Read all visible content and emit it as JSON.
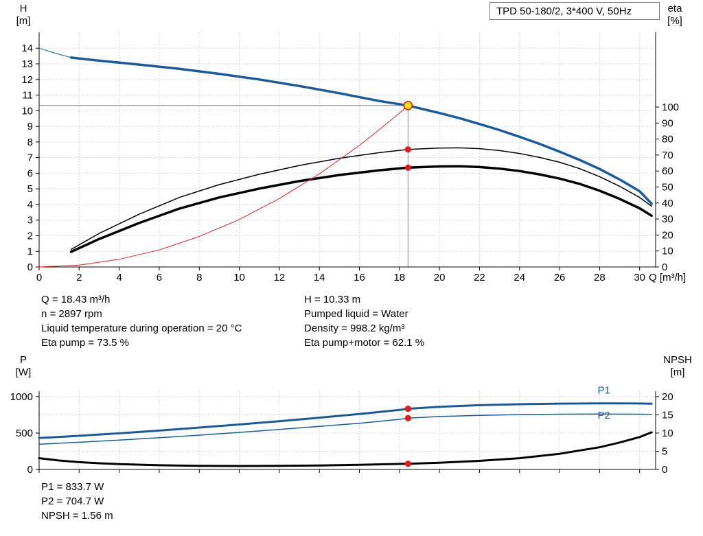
{
  "title_box": "TPD 50-180/2, 3*400 V, 50Hz",
  "labels": {
    "h": "H",
    "h_unit": "[m]",
    "eta": "eta",
    "eta_unit": "[%]",
    "q_unit": "Q [m³/h]",
    "p": "P",
    "p_unit": "[W]",
    "npsh": "NPSH",
    "npsh_unit": "[m]"
  },
  "duty_info": {
    "left": [
      "Q = 18.43 m³/h",
      "n = 2897 rpm",
      "Liquid temperature during operation = 20 °C",
      "Eta pump = 73.5 %"
    ],
    "right": [
      "H = 10.33 m",
      "Pumped liquid = Water",
      "Density = 998.2 kg/m³",
      "Eta pump+motor = 62.1 %"
    ]
  },
  "result_info": [
    "P1 = 833.7 W",
    "P2 = 704.7 W",
    "NPSH = 1.56 m"
  ],
  "colors": {
    "curve_blue": "#1a5a9c",
    "curve_black": "#000000",
    "system_red": "#e02020",
    "dot_red": "#e41b1b",
    "duty_marker_fill": "#ffe400",
    "duty_marker_stroke": "#e02020",
    "guide_gray": "#8a8a8a",
    "grid": "#c9c9c9",
    "axis": "#000000"
  },
  "chart_data": [
    {
      "name": "qh-eta-chart",
      "type": "line",
      "xlabel": "Q [m³/h]",
      "ylabel_left": "H [m]",
      "ylabel_right": "eta [%]",
      "xlim": [
        0,
        30.8
      ],
      "xticks": [
        0,
        2,
        4,
        6,
        8,
        10,
        12,
        14,
        16,
        18,
        20,
        22,
        24,
        26,
        28,
        30
      ],
      "show_x_labels": true,
      "left_ylim": [
        0,
        15.02
      ],
      "left_ticks": [
        0,
        1,
        2,
        3,
        4,
        5,
        6,
        7,
        8,
        9,
        10,
        11,
        12,
        13,
        14
      ],
      "right_ylim": [
        0,
        146.8
      ],
      "right_ticks": [
        0,
        10,
        20,
        30,
        40,
        50,
        60,
        70,
        80,
        90,
        100
      ],
      "grid_axis": "left",
      "duty_point": {
        "q": 18.43,
        "value": 10.33,
        "axis": "left"
      },
      "dots": [
        {
          "q": 18.43,
          "value": 73.5,
          "axis": "right"
        },
        {
          "q": 18.43,
          "value": 62.1,
          "axis": "right"
        }
      ],
      "series": [
        {
          "name": "h-curve-thin-start",
          "axis": "left",
          "color": "curve_blue",
          "width": 1,
          "points": [
            [
              0,
              14.0
            ],
            [
              0.8,
              13.68
            ],
            [
              1.6,
              13.4
            ]
          ]
        },
        {
          "name": "h-curve",
          "axis": "left",
          "color": "curve_blue",
          "width": 3.5,
          "points": [
            [
              1.6,
              13.4
            ],
            [
              3,
              13.2
            ],
            [
              5,
              12.95
            ],
            [
              7,
              12.68
            ],
            [
              9,
              12.36
            ],
            [
              11,
              12.0
            ],
            [
              13,
              11.58
            ],
            [
              15,
              11.12
            ],
            [
              17,
              10.62
            ],
            [
              18.43,
              10.33
            ],
            [
              20,
              9.85
            ],
            [
              21,
              9.52
            ],
            [
              22,
              9.15
            ],
            [
              23,
              8.76
            ],
            [
              24,
              8.33
            ],
            [
              25,
              7.88
            ],
            [
              26,
              7.38
            ],
            [
              27,
              6.85
            ],
            [
              28,
              6.27
            ],
            [
              29,
              5.6
            ],
            [
              30,
              4.85
            ],
            [
              30.6,
              4.05
            ]
          ]
        },
        {
          "name": "eta-pump-curve",
          "axis": "right",
          "color": "curve_black",
          "width": 1.5,
          "points": [
            [
              1.6,
              11
            ],
            [
              3,
              21
            ],
            [
              5,
              33
            ],
            [
              7,
              43.5
            ],
            [
              9,
              51.5
            ],
            [
              11,
              58
            ],
            [
              13,
              63.5
            ],
            [
              15,
              68
            ],
            [
              17,
              71.5
            ],
            [
              18.43,
              73.5
            ],
            [
              20,
              74.4
            ],
            [
              21,
              74.5
            ],
            [
              22,
              74
            ],
            [
              23,
              72.8
            ],
            [
              24,
              71
            ],
            [
              25,
              68.5
            ],
            [
              26,
              65.5
            ],
            [
              27,
              61.5
            ],
            [
              28,
              56.5
            ],
            [
              29,
              50.5
            ],
            [
              30,
              43.5
            ],
            [
              30.6,
              38
            ]
          ]
        },
        {
          "name": "eta-pump-motor-curve",
          "axis": "right",
          "color": "curve_black",
          "width": 3.5,
          "points": [
            [
              1.6,
              9.5
            ],
            [
              3,
              17.5
            ],
            [
              5,
              27.5
            ],
            [
              7,
              36.5
            ],
            [
              9,
              43.5
            ],
            [
              11,
              49
            ],
            [
              13,
              53.7
            ],
            [
              15,
              57.5
            ],
            [
              17,
              60.5
            ],
            [
              18.43,
              62.1
            ],
            [
              20,
              62.9
            ],
            [
              21,
              63
            ],
            [
              22,
              62.5
            ],
            [
              23,
              61.5
            ],
            [
              24,
              60
            ],
            [
              25,
              57.9
            ],
            [
              26,
              55.3
            ],
            [
              27,
              52
            ],
            [
              28,
              47.7
            ],
            [
              29,
              42.6
            ],
            [
              30,
              36.7
            ],
            [
              30.6,
              32
            ]
          ]
        },
        {
          "name": "system-curve",
          "axis": "left",
          "color": "system_red",
          "width": 1,
          "points": [
            [
              0,
              0
            ],
            [
              2,
              0.12
            ],
            [
              4,
              0.49
            ],
            [
              6,
              1.09
            ],
            [
              8,
              1.95
            ],
            [
              10,
              3.04
            ],
            [
              12,
              4.38
            ],
            [
              14,
              5.96
            ],
            [
              16,
              7.78
            ],
            [
              17,
              8.79
            ],
            [
              18,
              9.85
            ],
            [
              18.43,
              10.33
            ]
          ]
        }
      ]
    },
    {
      "name": "power-npsh-chart",
      "type": "line",
      "xlabel": "",
      "ylabel_left": "P [W]",
      "ylabel_right": "NPSH [m]",
      "xlim": [
        0,
        30.8
      ],
      "xticks": [
        0,
        2,
        4,
        6,
        8,
        10,
        12,
        14,
        16,
        18,
        20,
        22,
        24,
        26,
        28,
        30
      ],
      "show_x_labels": false,
      "left_ylim": [
        0,
        1075
      ],
      "left_ticks": [
        0,
        500,
        1000
      ],
      "right_ylim": [
        0,
        21.5
      ],
      "right_ticks": [
        0,
        5,
        10,
        15,
        20
      ],
      "grid_axis": "right",
      "dots": [
        {
          "q": 18.43,
          "value": 833.7,
          "axis": "left"
        },
        {
          "q": 18.43,
          "value": 704.7,
          "axis": "left"
        },
        {
          "q": 18.43,
          "value": 1.56,
          "axis": "right"
        }
      ],
      "series": [
        {
          "name": "p1-curve",
          "axis": "left",
          "color": "curve_blue",
          "width": 3,
          "label": {
            "text": "P1",
            "q": 27.9,
            "value": 1042
          },
          "points": [
            [
              0,
              432
            ],
            [
              2,
              462
            ],
            [
              4,
              496
            ],
            [
              6,
              534
            ],
            [
              8,
              575
            ],
            [
              10,
              618
            ],
            [
              12,
              663
            ],
            [
              14,
              711
            ],
            [
              16,
              762
            ],
            [
              18,
              818
            ],
            [
              18.43,
              833.7
            ],
            [
              20,
              861
            ],
            [
              22,
              883
            ],
            [
              24,
              896
            ],
            [
              26,
              904
            ],
            [
              28,
              908
            ],
            [
              30,
              906
            ],
            [
              30.6,
              903
            ]
          ]
        },
        {
          "name": "p2-curve",
          "axis": "left",
          "color": "curve_blue",
          "width": 1.5,
          "label": {
            "text": "P2",
            "q": 27.9,
            "value": 700
          },
          "points": [
            [
              0,
              347
            ],
            [
              2,
              373
            ],
            [
              4,
              403
            ],
            [
              6,
              436
            ],
            [
              8,
              471
            ],
            [
              10,
              509
            ],
            [
              12,
              549
            ],
            [
              14,
              591
            ],
            [
              16,
              635
            ],
            [
              18,
              688
            ],
            [
              18.43,
              704.7
            ],
            [
              20,
              727
            ],
            [
              22,
              743
            ],
            [
              24,
              753
            ],
            [
              26,
              759
            ],
            [
              28,
              761
            ],
            [
              30,
              759
            ],
            [
              30.6,
              756
            ]
          ]
        },
        {
          "name": "npsh-curve",
          "axis": "right",
          "color": "curve_black",
          "width": 3,
          "points": [
            [
              0,
              3.1
            ],
            [
              1,
              2.45
            ],
            [
              2,
              2.0
            ],
            [
              3,
              1.7
            ],
            [
              4,
              1.45
            ],
            [
              6,
              1.15
            ],
            [
              8,
              1.0
            ],
            [
              10,
              0.95
            ],
            [
              12,
              0.98
            ],
            [
              14,
              1.08
            ],
            [
              16,
              1.28
            ],
            [
              18,
              1.5
            ],
            [
              18.43,
              1.56
            ],
            [
              20,
              1.85
            ],
            [
              22,
              2.35
            ],
            [
              24,
              3.1
            ],
            [
              26,
              4.3
            ],
            [
              28,
              6.1
            ],
            [
              29,
              7.4
            ],
            [
              30,
              8.9
            ],
            [
              30.6,
              10.2
            ]
          ]
        }
      ]
    }
  ]
}
